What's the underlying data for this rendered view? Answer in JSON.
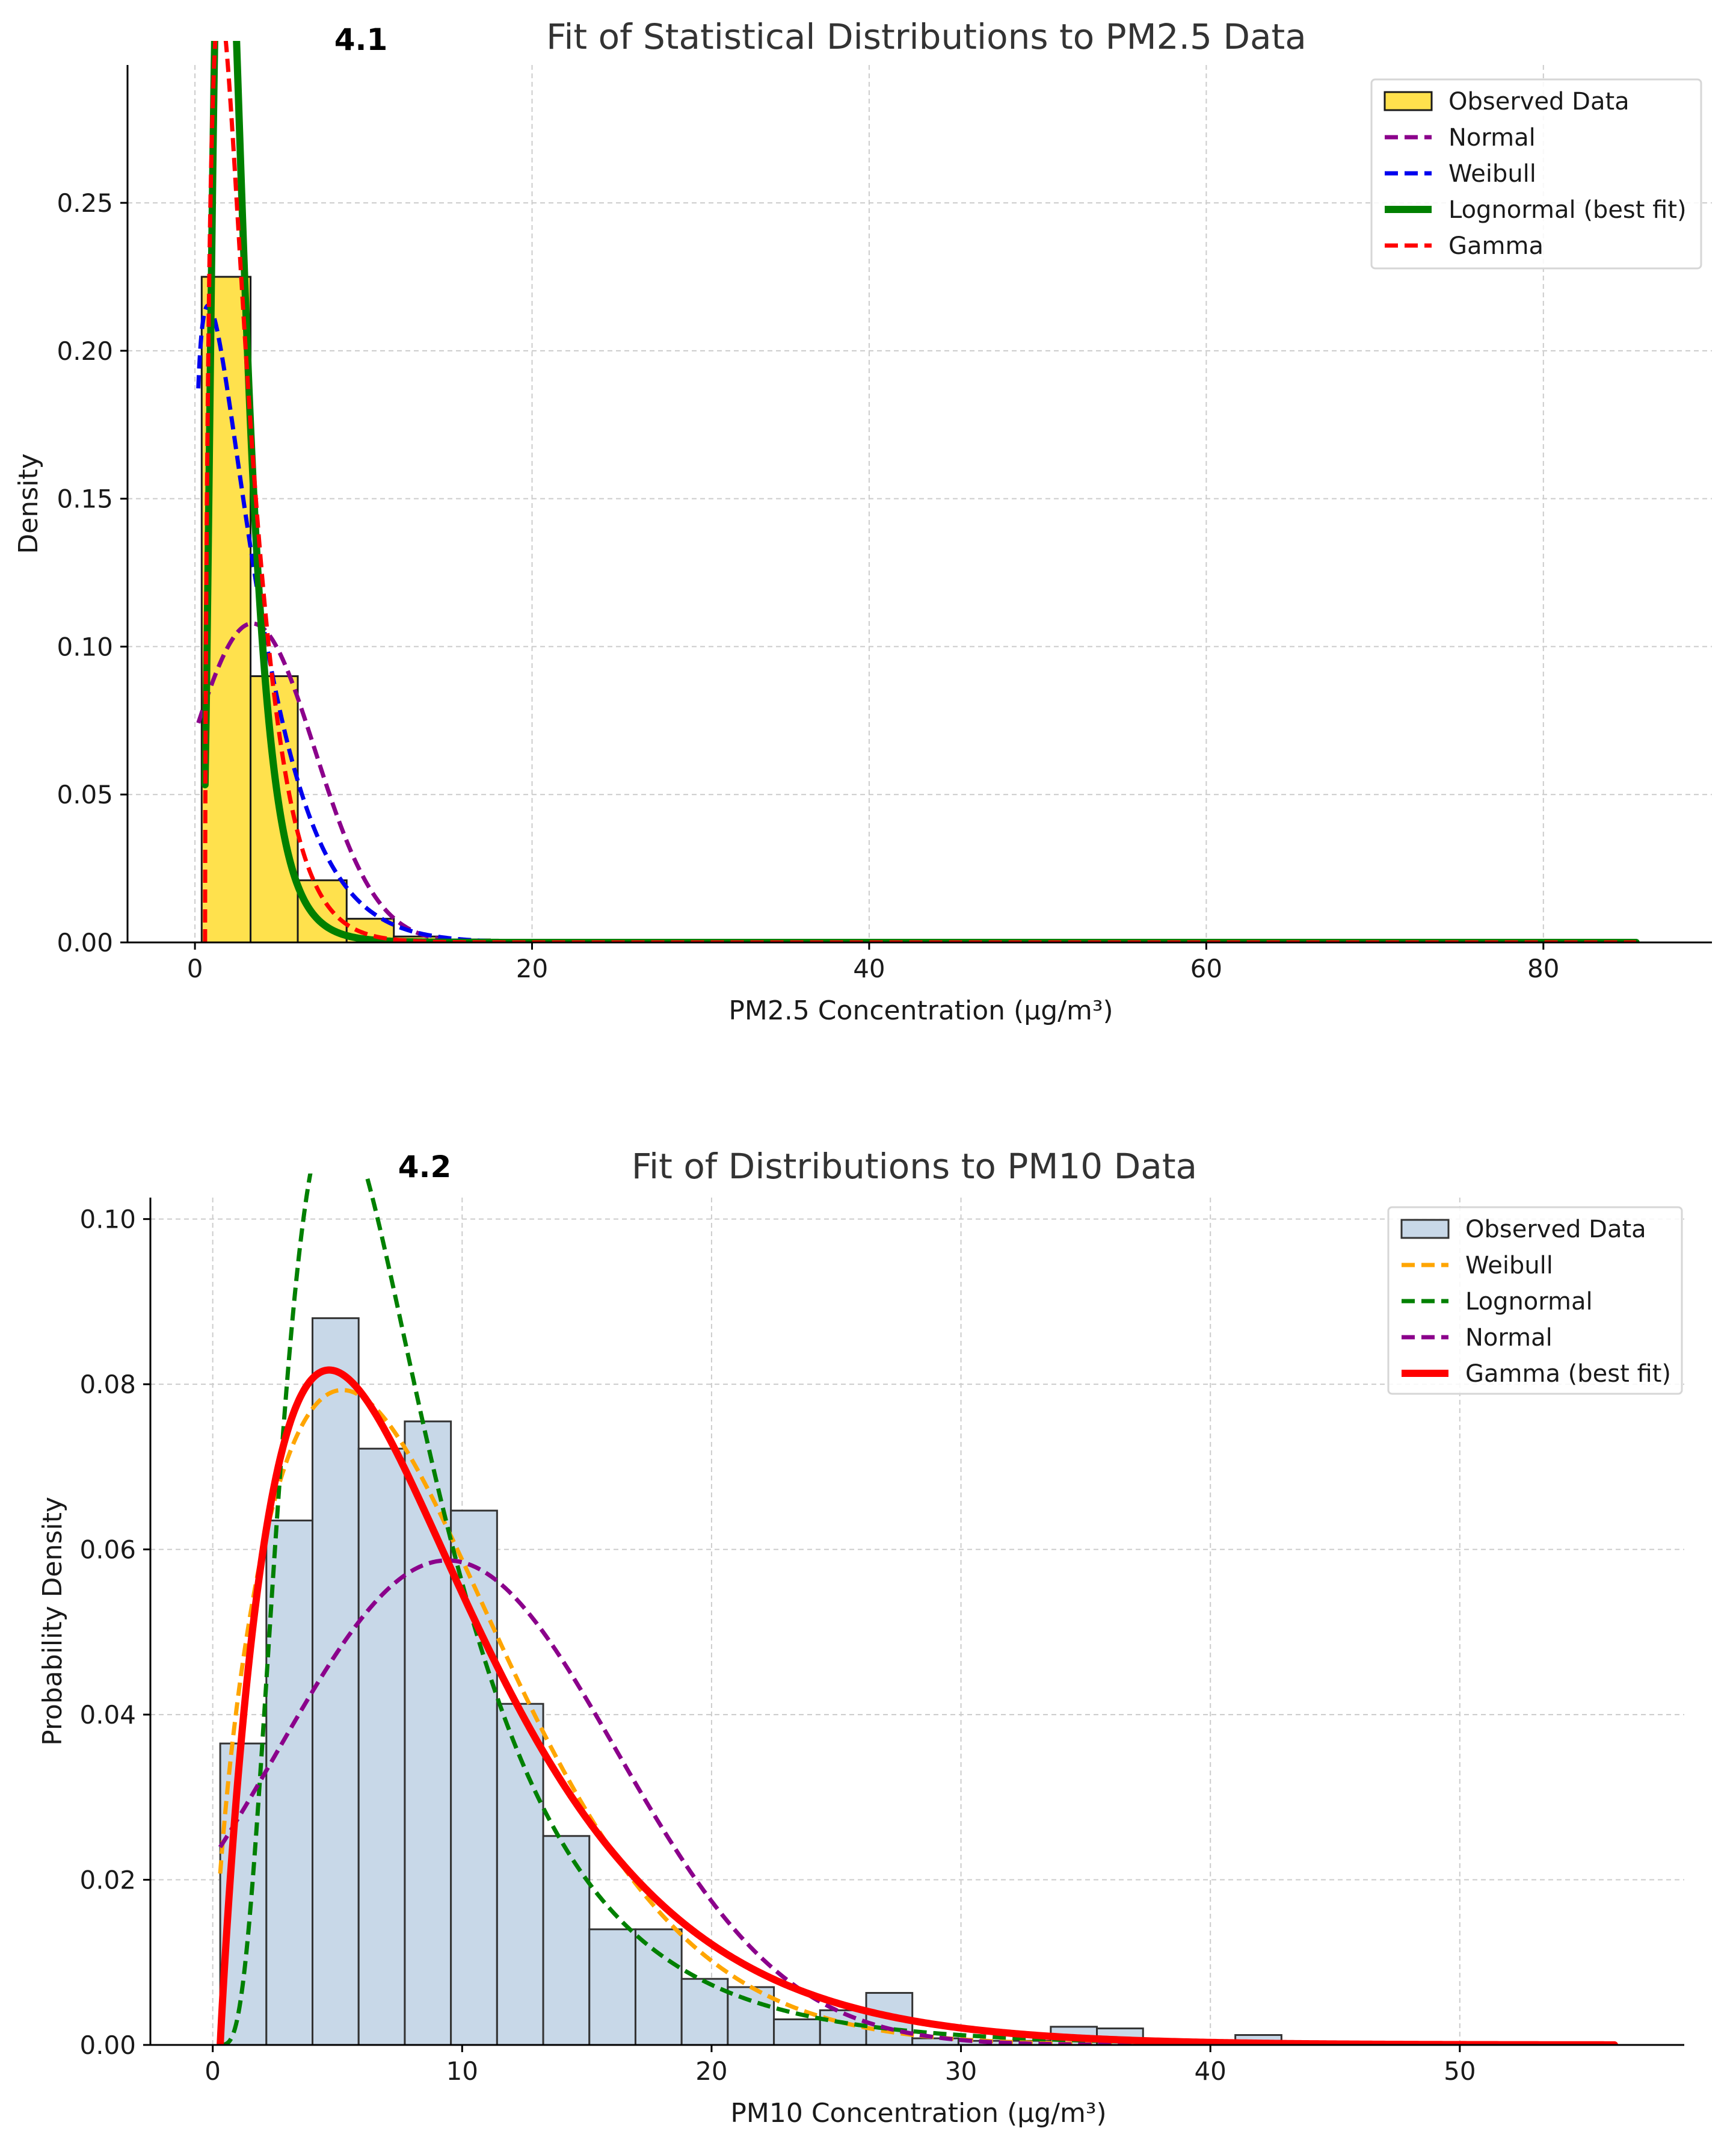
{
  "chart_data": [
    {
      "type": "bar",
      "panel_label": "4.1",
      "title": "Fit of Statistical Distributions to PM2.5 Data",
      "xlabel": "PM2.5 Concentration (µg/m³)",
      "ylabel": "Density",
      "xlim": [
        -4,
        90
      ],
      "ylim": [
        0,
        0.2966
      ],
      "xticks": [
        0,
        20,
        40,
        60,
        80
      ],
      "xtick_labels": [
        "0",
        "20",
        "40",
        "60",
        "80"
      ],
      "yticks": [
        0.0,
        0.05,
        0.1,
        0.15,
        0.2,
        0.25
      ],
      "ytick_labels": [
        "0.00",
        "0.05",
        "0.10",
        "0.15",
        "0.20",
        "0.25"
      ],
      "grid": true,
      "legend_position": "top-right",
      "histogram": {
        "name": "Observed Data",
        "color": "#ffe14d",
        "edge_color": "#1a1a1a",
        "bin_edges": [
          0.4,
          3.3,
          6.1,
          9.0,
          11.8,
          14.7,
          17.5
        ],
        "values": [
          0.225,
          0.09,
          0.021,
          0.008,
          0.002,
          0.001
        ]
      },
      "series": [
        {
          "name": "Normal",
          "dist": "normal",
          "params": {
            "mu": 3.4,
            "sigma": 3.7
          },
          "x_range": [
            0.2,
            85.5
          ],
          "color": "#8b008b",
          "dash": true,
          "width": 7
        },
        {
          "name": "Weibull",
          "dist": "weibull",
          "params": {
            "k": 1.2,
            "lambda": 3.5
          },
          "x_range": [
            0.2,
            85.5
          ],
          "color": "#0000ee",
          "dash": true,
          "width": 7
        },
        {
          "name": "Lognormal (best fit)",
          "dist": "lognormal",
          "params": {
            "mu": 0.8,
            "sigma": 0.52
          },
          "x_range": [
            0.6,
            85.5
          ],
          "color": "#008000",
          "dash": false,
          "width": 12
        },
        {
          "name": "Gamma",
          "dist": "gamma",
          "params": {
            "k": 1.63,
            "theta": 1.4,
            "loc": 0.6
          },
          "x_range": [
            0.6,
            85.5
          ],
          "color": "#ff0000",
          "dash": true,
          "width": 7
        }
      ],
      "legend_order": [
        "Observed Data",
        "Normal",
        "Weibull",
        "Lognormal (best fit)",
        "Gamma"
      ]
    },
    {
      "type": "bar",
      "panel_label": "4.2",
      "title": "Fit of Distributions to PM10 Data",
      "xlabel": "PM10 Concentration (µg/m³)",
      "ylabel": "Probability Density",
      "xlim": [
        -2.5,
        59
      ],
      "ylim": [
        0,
        0.1026
      ],
      "xticks": [
        0,
        10,
        20,
        30,
        40,
        50
      ],
      "xtick_labels": [
        "0",
        "10",
        "20",
        "30",
        "40",
        "50"
      ],
      "yticks": [
        0.0,
        0.02,
        0.04,
        0.06,
        0.08,
        0.1
      ],
      "ytick_labels": [
        "0.00",
        "0.02",
        "0.04",
        "0.06",
        "0.08",
        "0.10"
      ],
      "grid": true,
      "legend_position": "top-right",
      "histogram": {
        "name": "Observed Data",
        "color": "#c8d8e8",
        "edge_color": "#333333",
        "bin_edges": [
          0.3,
          2.15,
          4.0,
          5.85,
          7.7,
          9.55,
          11.4,
          13.25,
          15.1,
          16.95,
          18.8,
          20.65,
          22.5,
          24.35,
          26.2,
          28.05,
          29.9,
          31.75,
          33.6,
          35.45,
          37.3,
          39.15,
          41.0,
          42.85,
          44.7
        ],
        "values": [
          0.0365,
          0.0635,
          0.088,
          0.0722,
          0.0755,
          0.0647,
          0.0413,
          0.0253,
          0.014,
          0.014,
          0.008,
          0.007,
          0.0031,
          0.0042,
          0.0063,
          0.0008,
          0.0005,
          0.0005,
          0.0022,
          0.002,
          0.0003,
          0.0003,
          0.0012,
          0.0002
        ]
      },
      "series": [
        {
          "name": "Weibull",
          "dist": "weibull",
          "params": {
            "k": 1.6,
            "lambda": 9.6
          },
          "x_range": [
            0.3,
            56.2
          ],
          "color": "#ffa500",
          "dash": true,
          "width": 7
        },
        {
          "name": "Lognormal",
          "dist": "lognormal",
          "params": {
            "mu": 1.95,
            "sigma": 0.6
          },
          "x_range": [
            0.3,
            56.2
          ],
          "color": "#008000",
          "dash": true,
          "width": 7
        },
        {
          "name": "Normal",
          "dist": "normal",
          "params": {
            "mu": 9.4,
            "sigma": 6.8
          },
          "x_range": [
            0.3,
            56.2
          ],
          "color": "#8b008b",
          "dash": true,
          "width": 7
        },
        {
          "name": "Gamma (best fit)",
          "dist": "gamma",
          "params": {
            "k": 1.95,
            "theta": 4.6,
            "loc": 0.3
          },
          "x_range": [
            0.3,
            56.2
          ],
          "color": "#ff0000",
          "dash": false,
          "width": 12
        }
      ],
      "legend_order": [
        "Observed Data",
        "Weibull",
        "Lognormal",
        "Normal",
        "Gamma (best fit)"
      ]
    }
  ]
}
